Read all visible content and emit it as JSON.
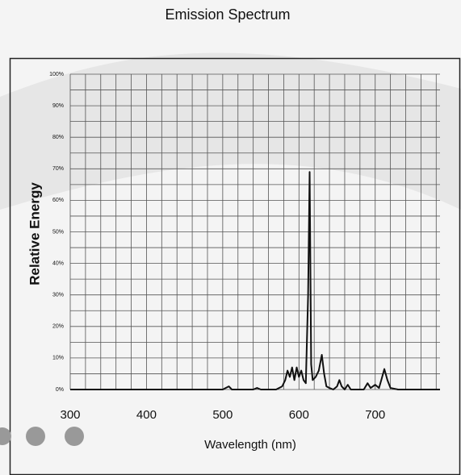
{
  "chart_data": {
    "type": "line",
    "title": "Emission Spectrum",
    "x_label": "Wavelength (nm)",
    "y_label": "Relative Energy",
    "x": [
      300,
      400,
      460,
      500,
      508,
      512,
      520,
      540,
      545,
      550,
      570,
      578,
      582,
      585,
      588,
      591,
      594,
      597,
      600,
      603,
      606,
      609,
      612,
      614,
      616,
      618,
      622,
      626,
      630,
      633,
      636,
      640,
      645,
      650,
      653,
      656,
      660,
      664,
      668,
      675,
      685,
      690,
      694,
      700,
      705,
      708,
      712,
      716,
      720,
      730,
      750,
      785
    ],
    "values": [
      0,
      0,
      0,
      0,
      1,
      0,
      0,
      0,
      0.5,
      0,
      0,
      1,
      3,
      6,
      4,
      7,
      3,
      7,
      4,
      6,
      3,
      2,
      30,
      69,
      8,
      3,
      4,
      6,
      11,
      5,
      1,
      0.5,
      0,
      1,
      3,
      1,
      0,
      1.5,
      0,
      0,
      0,
      2,
      0.5,
      1.5,
      0.5,
      3,
      6.5,
      3,
      0.5,
      0,
      0,
      0
    ],
    "color": "#111111",
    "xlim": [
      300,
      785
    ],
    "ylim": [
      0,
      100
    ],
    "xticks": [
      300,
      400,
      500,
      600,
      700
    ],
    "yticks": [
      {
        "value": 0,
        "label": "0%"
      },
      {
        "value": 10,
        "label": "10%"
      },
      {
        "value": 20,
        "label": "20%"
      },
      {
        "value": 30,
        "label": "30%"
      },
      {
        "value": 40,
        "label": "40%"
      },
      {
        "value": 50,
        "label": "50%"
      },
      {
        "value": 60,
        "label": "60%"
      },
      {
        "value": 70,
        "label": "70%"
      },
      {
        "value": 80,
        "label": "80%"
      },
      {
        "value": 90,
        "label": "90%"
      },
      {
        "value": 100,
        "label": "100%"
      }
    ],
    "x_grid_lines": [
      300,
      320,
      340,
      360,
      380,
      400,
      420,
      440,
      460,
      480,
      500,
      520,
      540,
      560,
      580,
      600,
      620,
      640,
      660,
      680,
      700,
      720,
      740,
      760,
      780
    ],
    "y_grid_lines": [
      0,
      5,
      10,
      15,
      20,
      25,
      30,
      35,
      40,
      45,
      50,
      55,
      60,
      65,
      70,
      75,
      80,
      85,
      90,
      95,
      100
    ],
    "grid": true
  }
}
